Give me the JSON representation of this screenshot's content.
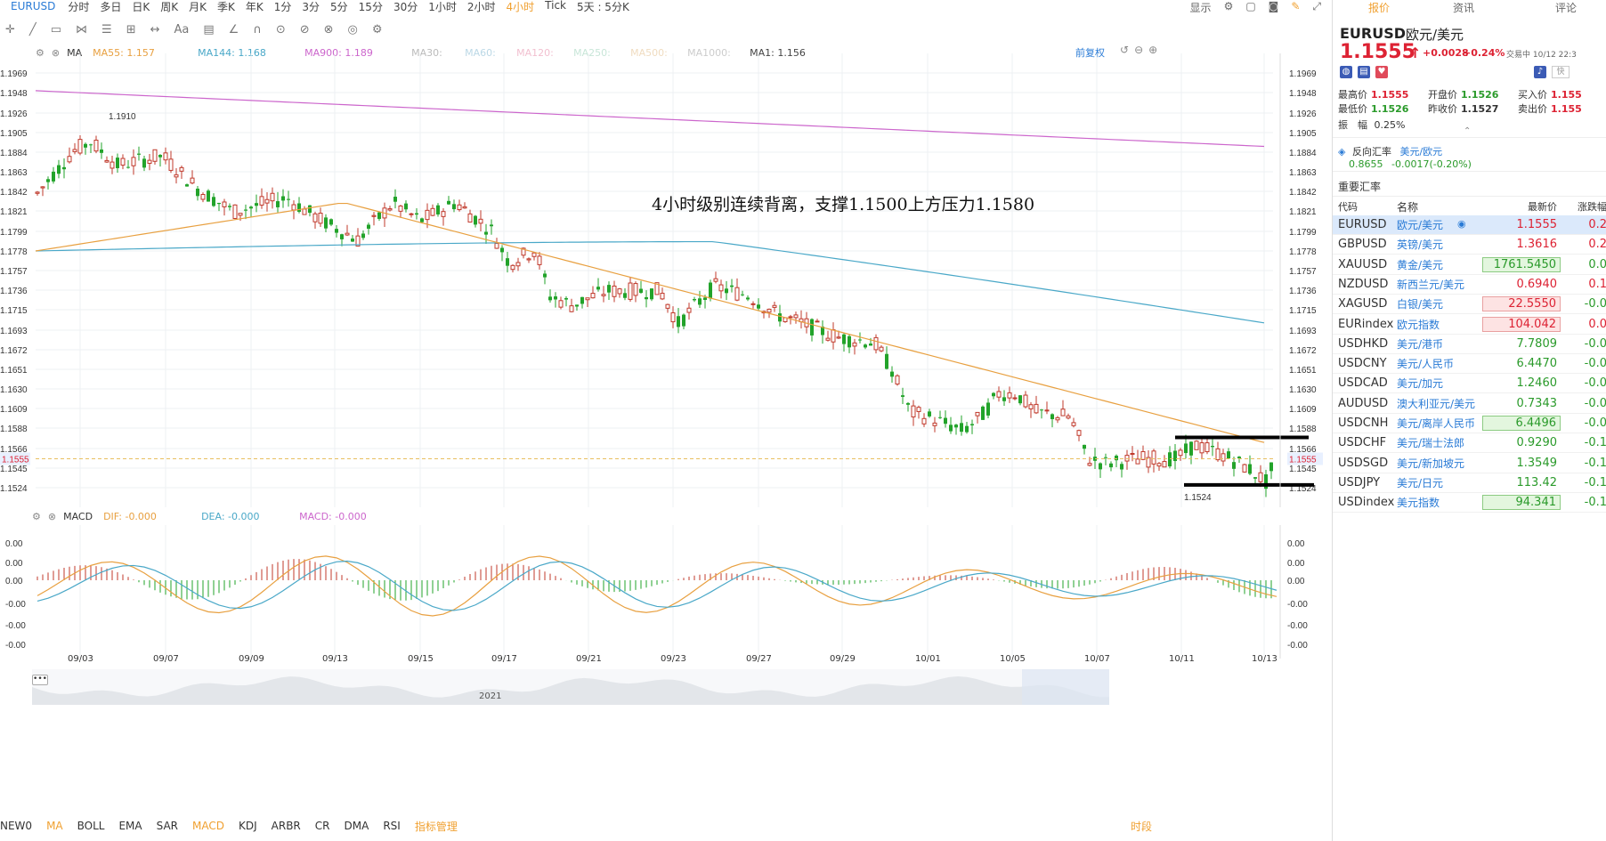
{
  "topbar": {
    "symbol": "EURUSD",
    "timeframes": [
      "分时",
      "多日",
      "日K",
      "周K",
      "月K",
      "季K",
      "年K",
      "1分",
      "3分",
      "5分",
      "15分",
      "30分",
      "1小时",
      "2小时",
      "4小时",
      "Tick",
      "5天 : 5分K"
    ],
    "active": "4小时",
    "right_items": [
      "显示"
    ]
  },
  "chart": {
    "ma_header": {
      "label": "MA",
      "items": [
        {
          "text": "MA55: 1.157",
          "color": "#e8a040"
        },
        {
          "text": "MA144: 1.168",
          "color": "#4aa8c8"
        },
        {
          "text": "MA900: 1.189",
          "color": "#cc66cc"
        },
        {
          "text": "MA30:",
          "color": "#bbbbbb"
        },
        {
          "text": "MA60:",
          "color": "#bbd8e6"
        },
        {
          "text": "MA120:",
          "color": "#f2c0d0"
        },
        {
          "text": "MA250:",
          "color": "#c8e6d8"
        },
        {
          "text": "MA500:",
          "color": "#f0dcc0"
        },
        {
          "text": "MA1000:",
          "color": "#cccccc"
        },
        {
          "text": "MA1: 1.156",
          "color": "#444444"
        }
      ],
      "right_label": "前复权"
    },
    "price_ticks": [
      "1.1969",
      "1.1948",
      "1.1926",
      "1.1905",
      "1.1884",
      "1.1863",
      "1.1842",
      "1.1821",
      "1.1799",
      "1.1778",
      "1.1757",
      "1.1736",
      "1.1715",
      "1.1693",
      "1.1672",
      "1.1651",
      "1.1630",
      "1.1609",
      "1.1588",
      "1.1566",
      "1.1545",
      "1.1524"
    ],
    "current_price_label": "1.1555",
    "high_label": "1.1910",
    "low_label": "1.1524",
    "annotation": "4小时级别连续背离，支撑1.1500上方压力1.1580",
    "macd_header": {
      "label": "MACD",
      "items": [
        {
          "text": "DIF: -0.000",
          "color": "#e8a040"
        },
        {
          "text": "DEA: -0.000",
          "color": "#4aa8c8"
        },
        {
          "text": "MACD: -0.000",
          "color": "#cc66cc"
        }
      ]
    },
    "macd_ticks": [
      "0.00",
      "0.00",
      "0.00",
      "-0.00",
      "-0.00",
      "-0.00"
    ],
    "x_labels": [
      "09/03",
      "09/07",
      "09/09",
      "09/13",
      "09/15",
      "09/17",
      "09/21",
      "09/23",
      "09/27",
      "09/29",
      "10/01",
      "10/05",
      "10/07",
      "10/11",
      "10/13"
    ],
    "nav_year": "2021",
    "nav_dots": "•••"
  },
  "bottombar": {
    "items": [
      "NEW0",
      "MA",
      "BOLL",
      "EMA",
      "SAR",
      "MACD",
      "KDJ",
      "ARBR",
      "CR",
      "DMA",
      "RSI",
      "指标管理"
    ],
    "active": [
      "MA",
      "MACD"
    ],
    "right": "时段"
  },
  "rpanel": {
    "tabs": [
      "报价",
      "资讯",
      "评论"
    ],
    "symbol": "EURUSD",
    "name": "欧元/美元",
    "price": "1.1555",
    "arrow": "↑",
    "change": "+0.0028",
    "change_pct": "+0.24%",
    "status": "交易中 10/12 22:3",
    "quick": "快",
    "stats": [
      {
        "label": "最高价",
        "value": "1.1555",
        "cls": "up"
      },
      {
        "label": "开盘价",
        "value": "1.1526",
        "cls": "dn"
      },
      {
        "label": "买入价",
        "value": "1.155",
        "cls": "up"
      },
      {
        "label": "最低价",
        "value": "1.1526",
        "cls": "dn"
      },
      {
        "label": "昨收价",
        "value": "1.1527",
        "cls": ""
      },
      {
        "label": "卖出价",
        "value": "1.155",
        "cls": "up"
      }
    ],
    "amp_label": "振　幅",
    "amp_value": "0.25%",
    "reverse_label": "反向汇率",
    "reverse_name": "美元/欧元",
    "reverse_value": "0.8655",
    "reverse_change": "-0.0017(-0.20%)",
    "section_title": "重要汇率",
    "headers": [
      "代码",
      "名称",
      "最新价",
      "涨跌幅"
    ],
    "rows": [
      {
        "code": "EURUSD",
        "name": "欧元/美元",
        "price": "1.1555",
        "pclass": "up",
        "pct": "0.2",
        "pctcls": "up",
        "bg": ""
      },
      {
        "code": "GBPUSD",
        "name": "英镑/美元",
        "price": "1.3616",
        "pclass": "up",
        "pct": "0.2",
        "pctcls": "up",
        "bg": ""
      },
      {
        "code": "XAUUSD",
        "name": "黄金/美元",
        "price": "1761.5450",
        "pclass": "dn",
        "pct": "0.0",
        "pctcls": "dn",
        "bg": "dn"
      },
      {
        "code": "NZDUSD",
        "name": "新西兰元/美元",
        "price": "0.6940",
        "pclass": "up",
        "pct": "0.1",
        "pctcls": "up",
        "bg": ""
      },
      {
        "code": "XAGUSD",
        "name": "白银/美元",
        "price": "22.5550",
        "pclass": "up",
        "pct": "-0.0",
        "pctcls": "dn",
        "bg": "up"
      },
      {
        "code": "EURindex",
        "name": "欧元指数",
        "price": "104.042",
        "pclass": "up",
        "pct": "0.0",
        "pctcls": "up",
        "bg": "up"
      },
      {
        "code": "USDHKD",
        "name": "美元/港币",
        "price": "7.7809",
        "pclass": "dn",
        "pct": "-0.0",
        "pctcls": "dn",
        "bg": ""
      },
      {
        "code": "USDCNY",
        "name": "美元/人民币",
        "price": "6.4470",
        "pclass": "dn",
        "pct": "-0.0",
        "pctcls": "dn",
        "bg": ""
      },
      {
        "code": "USDCAD",
        "name": "美元/加元",
        "price": "1.2460",
        "pclass": "dn",
        "pct": "-0.0",
        "pctcls": "dn",
        "bg": ""
      },
      {
        "code": "AUDUSD",
        "name": "澳大利亚元/美元",
        "price": "0.7343",
        "pclass": "dn",
        "pct": "-0.0",
        "pctcls": "dn",
        "bg": ""
      },
      {
        "code": "USDCNH",
        "name": "美元/离岸人民币",
        "price": "6.4496",
        "pclass": "dn",
        "pct": "-0.0",
        "pctcls": "dn",
        "bg": "dn"
      },
      {
        "code": "USDCHF",
        "name": "美元/瑞士法郎",
        "price": "0.9290",
        "pclass": "dn",
        "pct": "-0.1",
        "pctcls": "dn",
        "bg": ""
      },
      {
        "code": "USDSGD",
        "name": "美元/新加坡元",
        "price": "1.3549",
        "pclass": "dn",
        "pct": "-0.1",
        "pctcls": "dn",
        "bg": ""
      },
      {
        "code": "USDJPY",
        "name": "美元/日元",
        "price": "113.42",
        "pclass": "dn",
        "pct": "-0.1",
        "pctcls": "dn",
        "bg": ""
      },
      {
        "code": "USDindex",
        "name": "美元指数",
        "price": "94.341",
        "pclass": "dn",
        "pct": "-0.1",
        "pctcls": "dn",
        "bg": "dn"
      }
    ]
  }
}
